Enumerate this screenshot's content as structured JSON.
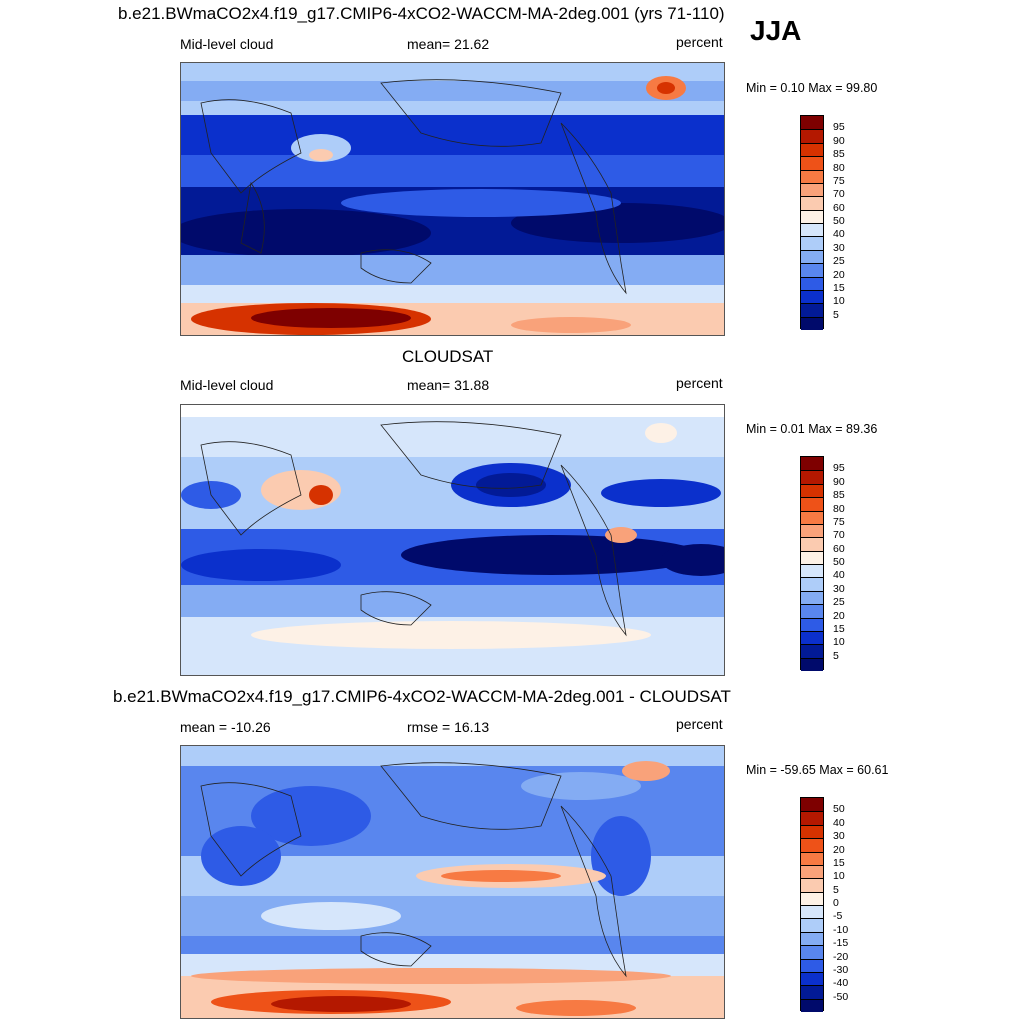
{
  "header": {
    "title": "b.e21.BWmaCO2x4.f19_g17.CMIP6-4xCO2-WACCM-MA-2deg.001 (yrs 71-110)",
    "season": "JJA"
  },
  "panels": [
    {
      "id": "model",
      "left_label": "Mid-level cloud",
      "center_label": "mean=  21.62",
      "right_label": "percent",
      "minmax": "Min =   0.10 Max =  99.80",
      "colorbar": {
        "ticks": [
          "95",
          "90",
          "85",
          "80",
          "75",
          "70",
          "60",
          "50",
          "40",
          "30",
          "25",
          "20",
          "15",
          "10",
          "5"
        ],
        "colors": [
          "#7e0000",
          "#b41800",
          "#d63200",
          "#ee5218",
          "#f77a43",
          "#f9a27a",
          "#fbcbb0",
          "#fdf1e6",
          "#d6e6fb",
          "#aecdf9",
          "#84acf3",
          "#5986ee",
          "#2e5be6",
          "#0b30cc",
          "#021a96",
          "#000a6b"
        ]
      }
    },
    {
      "id": "obs",
      "title": "CLOUDSAT",
      "left_label": "Mid-level cloud",
      "center_label": "mean=  31.88",
      "right_label": "percent",
      "minmax": "Min =   0.01 Max =  89.36",
      "colorbar": {
        "ticks": [
          "95",
          "90",
          "85",
          "80",
          "75",
          "70",
          "60",
          "50",
          "40",
          "30",
          "25",
          "20",
          "15",
          "10",
          "5"
        ],
        "colors": [
          "#7e0000",
          "#b41800",
          "#d63200",
          "#ee5218",
          "#f77a43",
          "#f9a27a",
          "#fbcbb0",
          "#fdf1e6",
          "#d6e6fb",
          "#aecdf9",
          "#84acf3",
          "#5986ee",
          "#2e5be6",
          "#0b30cc",
          "#021a96",
          "#000a6b"
        ]
      }
    },
    {
      "id": "diff",
      "title": "b.e21.BWmaCO2x4.f19_g17.CMIP6-4xCO2-WACCM-MA-2deg.001 - CLOUDSAT",
      "left_label": "mean = -10.26",
      "center_label": "rmse =  16.13",
      "right_label": "percent",
      "minmax": "Min = -59.65 Max =  60.61",
      "colorbar": {
        "ticks": [
          "50",
          "40",
          "30",
          "20",
          "15",
          "10",
          "5",
          "0",
          "-5",
          "-10",
          "-15",
          "-20",
          "-30",
          "-40",
          "-50"
        ],
        "colors": [
          "#7e0000",
          "#b41800",
          "#d63200",
          "#ee5218",
          "#f77a43",
          "#f9a27a",
          "#fbcbb0",
          "#fdf1e6",
          "#d6e6fb",
          "#aecdf9",
          "#84acf3",
          "#5986ee",
          "#2e5be6",
          "#0b30cc",
          "#021a96",
          "#000a6b"
        ]
      }
    }
  ]
}
